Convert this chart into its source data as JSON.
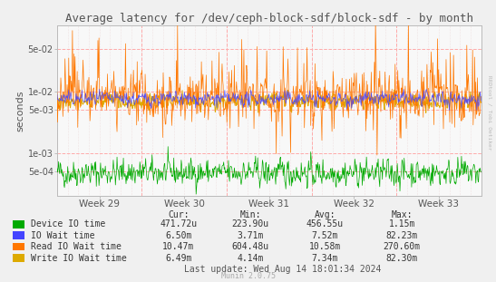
{
  "title": "Average latency for /dev/ceph-block-sdf/block-sdf - by month",
  "ylabel": "seconds",
  "xlabel_ticks": [
    "Week 29",
    "Week 30",
    "Week 31",
    "Week 32",
    "Week 33"
  ],
  "bg_color": "#f0f0f0",
  "plot_bg_color": "#f8f8f8",
  "grid_color_h": "#ff9999",
  "grid_color_v": "#ddaaaa",
  "legend_items": [
    {
      "label": "Device IO time",
      "color": "#00aa00"
    },
    {
      "label": "IO Wait time",
      "color": "#4444ff"
    },
    {
      "label": "Read IO Wait time",
      "color": "#ff7700"
    },
    {
      "label": "Write IO Wait time",
      "color": "#ddaa00"
    }
  ],
  "legend_stats_header": [
    "Cur:",
    "Min:",
    "Avg:",
    "Max:"
  ],
  "legend_stats": [
    [
      "471.72u",
      "223.90u",
      "456.55u",
      "1.15m"
    ],
    [
      "6.50m",
      "3.71m",
      "7.52m",
      "82.23m"
    ],
    [
      "10.47m",
      "604.48u",
      "10.58m",
      "270.60m"
    ],
    [
      "6.49m",
      "4.14m",
      "7.34m",
      "82.30m"
    ]
  ],
  "last_update": "Last update: Wed Aug 14 18:01:34 2024",
  "munin_version": "Munin 2.0.75",
  "rrdtool_label": "RRDtool / Tobi Oetiker",
  "n_points": 800,
  "seed": 42,
  "green_base": -3.32,
  "green_noise": 0.15,
  "blue_base": -2.12,
  "blue_noise": 0.08,
  "orange_base": -2.08,
  "orange_noise": 0.28,
  "yellow_base": -2.15,
  "yellow_noise": 0.09
}
